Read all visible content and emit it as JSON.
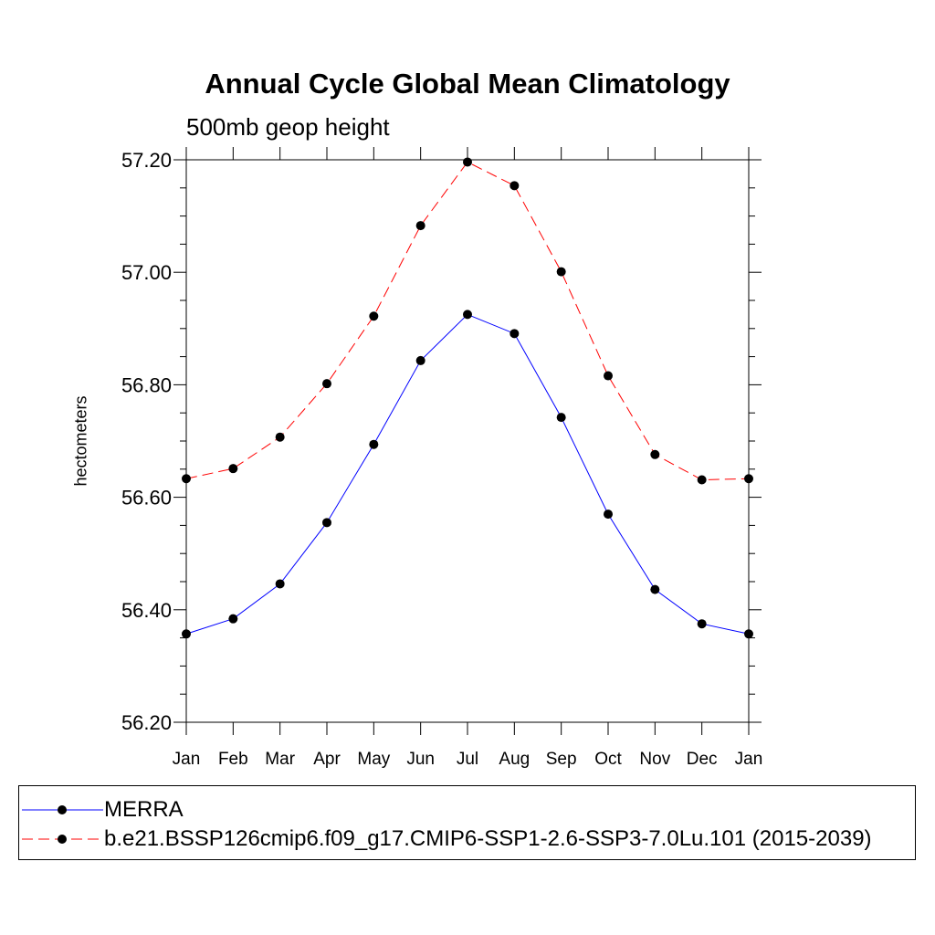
{
  "colors": {
    "merra": "#0000ff",
    "model": "#ff0000",
    "marker": "#000000",
    "axis": "#000000"
  },
  "chart_data": {
    "type": "line",
    "title": "Annual Cycle Global Mean Climatology",
    "subtitle": "500mb geop height",
    "xlabel": "",
    "ylabel": "hectometers",
    "categories": [
      "Jan",
      "Feb",
      "Mar",
      "Apr",
      "May",
      "Jun",
      "Jul",
      "Aug",
      "Sep",
      "Oct",
      "Nov",
      "Dec",
      "Jan"
    ],
    "ylim": [
      56.2,
      57.2
    ],
    "yticks": [
      "56.20",
      "56.40",
      "56.60",
      "56.80",
      "57.00",
      "57.20"
    ],
    "legend_position": "bottom",
    "series": [
      {
        "name": "MERRA",
        "style": "solid",
        "values": [
          56.357,
          56.384,
          56.446,
          56.555,
          56.694,
          56.843,
          56.925,
          56.891,
          56.742,
          56.57,
          56.436,
          56.375,
          56.357
        ]
      },
      {
        "name": "b.e21.BSSP126cmip6.f09_g17.CMIP6-SSP1-2.6-SSP3-7.0Lu.101 (2015-2039)",
        "style": "dashed",
        "values": [
          56.633,
          56.651,
          56.707,
          56.802,
          56.922,
          57.083,
          57.196,
          57.154,
          57.001,
          56.816,
          56.676,
          56.631,
          56.633
        ]
      }
    ]
  }
}
